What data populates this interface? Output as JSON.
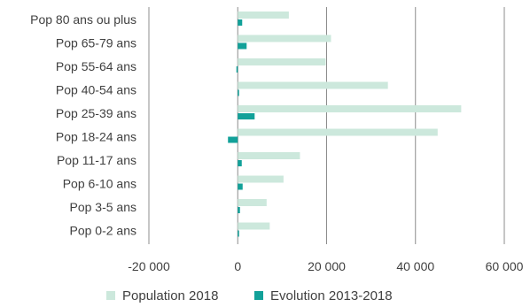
{
  "chart_data": {
    "type": "bar",
    "orientation": "horizontal",
    "categories": [
      "Pop 80 ans ou plus",
      "Pop 65-79 ans",
      "Pop 55-64 ans",
      "Pop 40-54 ans",
      "Pop 25-39 ans",
      "Pop 18-24 ans",
      "Pop 11-17 ans",
      "Pop 6-10 ans",
      "Pop 3-5 ans",
      "Pop 0-2 ans"
    ],
    "series": [
      {
        "name": "Population 2018",
        "color": "#cce8dc",
        "values": [
          11500,
          21000,
          19800,
          33800,
          50300,
          45000,
          14000,
          10300,
          6500,
          7200
        ]
      },
      {
        "name": "Evolution 2013-2018",
        "color": "#12a199",
        "values": [
          1000,
          2000,
          -300,
          300,
          3800,
          -2200,
          900,
          1100,
          500,
          100
        ]
      }
    ],
    "xlim": [
      -20000,
      60000
    ],
    "xticks": [
      -20000,
      0,
      20000,
      40000,
      60000
    ],
    "xtick_labels": [
      "-20 000",
      "0",
      "20 000",
      "40 000",
      "60 000"
    ],
    "grid": "vertical",
    "legend_position": "bottom",
    "title": "",
    "xlabel": "",
    "ylabel": ""
  }
}
